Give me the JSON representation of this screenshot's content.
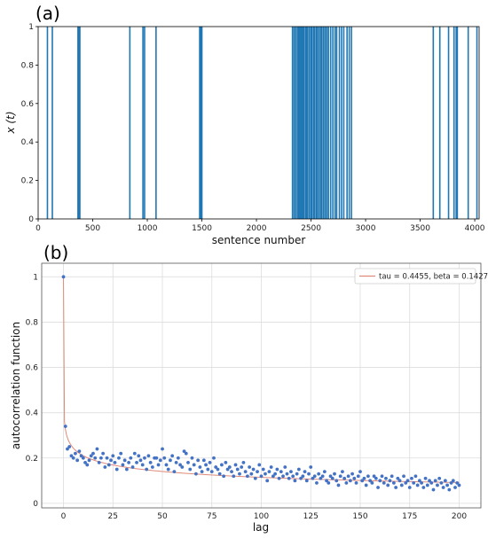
{
  "chart_data": [
    {
      "panel_label": "(a)",
      "type": "bar",
      "xlabel": "sentence number",
      "ylabel": "x (t)",
      "xlim": [
        0,
        4040
      ],
      "ylim": [
        0,
        1
      ],
      "x_ticks": [
        0,
        500,
        1000,
        1500,
        2000,
        2500,
        3000,
        3500,
        4000
      ],
      "y_ticks": [
        0.0,
        0.2,
        0.4,
        0.6,
        0.8,
        1.0
      ],
      "grid": false,
      "color": "#1f77b4",
      "spikes": [
        {
          "x": 85,
          "value": 1
        },
        {
          "x": 130,
          "value": 1
        },
        {
          "x": 365,
          "value": 1
        },
        {
          "x": 375,
          "value": 1
        },
        {
          "x": 382,
          "value": 1
        },
        {
          "x": 840,
          "value": 1
        },
        {
          "x": 960,
          "value": 1
        },
        {
          "x": 975,
          "value": 1
        },
        {
          "x": 1080,
          "value": 1
        },
        {
          "x": 1480,
          "value": 1
        },
        {
          "x": 1490,
          "value": 1
        },
        {
          "x": 1500,
          "value": 1
        },
        {
          "x": 2330,
          "value": 1
        },
        {
          "x": 2345,
          "value": 1
        },
        {
          "x": 2360,
          "value": 1
        },
        {
          "x": 2375,
          "value": 1
        },
        {
          "x": 2385,
          "value": 1
        },
        {
          "x": 2395,
          "value": 1
        },
        {
          "x": 2405,
          "value": 1
        },
        {
          "x": 2415,
          "value": 1
        },
        {
          "x": 2425,
          "value": 1
        },
        {
          "x": 2435,
          "value": 1
        },
        {
          "x": 2450,
          "value": 1
        },
        {
          "x": 2460,
          "value": 1
        },
        {
          "x": 2470,
          "value": 1
        },
        {
          "x": 2485,
          "value": 1
        },
        {
          "x": 2500,
          "value": 1
        },
        {
          "x": 2510,
          "value": 1
        },
        {
          "x": 2525,
          "value": 1
        },
        {
          "x": 2535,
          "value": 1
        },
        {
          "x": 2550,
          "value": 1
        },
        {
          "x": 2560,
          "value": 1
        },
        {
          "x": 2575,
          "value": 1
        },
        {
          "x": 2590,
          "value": 1
        },
        {
          "x": 2600,
          "value": 1
        },
        {
          "x": 2615,
          "value": 1
        },
        {
          "x": 2630,
          "value": 1
        },
        {
          "x": 2645,
          "value": 1
        },
        {
          "x": 2660,
          "value": 1
        },
        {
          "x": 2680,
          "value": 1
        },
        {
          "x": 2700,
          "value": 1
        },
        {
          "x": 2720,
          "value": 1
        },
        {
          "x": 2735,
          "value": 1
        },
        {
          "x": 2760,
          "value": 1
        },
        {
          "x": 2780,
          "value": 1
        },
        {
          "x": 2800,
          "value": 1
        },
        {
          "x": 2830,
          "value": 1
        },
        {
          "x": 2850,
          "value": 1
        },
        {
          "x": 2870,
          "value": 1
        },
        {
          "x": 3620,
          "value": 1
        },
        {
          "x": 3680,
          "value": 1
        },
        {
          "x": 3760,
          "value": 1
        },
        {
          "x": 3810,
          "value": 1
        },
        {
          "x": 3830,
          "value": 1
        },
        {
          "x": 3840,
          "value": 1
        },
        {
          "x": 3940,
          "value": 1
        },
        {
          "x": 4020,
          "value": 1
        }
      ]
    },
    {
      "panel_label": "(b)",
      "type": "scatter",
      "xlabel": "lag",
      "ylabel": "autocorrelation function",
      "xlim": [
        -11,
        211
      ],
      "ylim": [
        -0.02,
        1.06
      ],
      "x_ticks": [
        0,
        25,
        50,
        75,
        100,
        125,
        150,
        175,
        200
      ],
      "y_ticks": [
        0.0,
        0.2,
        0.4,
        0.6,
        0.8,
        1.0
      ],
      "grid": true,
      "legend_position": "top-right",
      "point_color": "#4472c4",
      "fit_color": "#e08a7a",
      "fit": {
        "label": "tau = 0.4455, beta = 0.1427",
        "tau": 0.4455,
        "beta": 0.1427
      },
      "lags": [
        0,
        1,
        2,
        3,
        4,
        5,
        6,
        7,
        8,
        9,
        10,
        11,
        12,
        13,
        14,
        15,
        16,
        17,
        18,
        19,
        20,
        21,
        22,
        23,
        24,
        25,
        26,
        27,
        28,
        29,
        30,
        31,
        32,
        33,
        34,
        35,
        36,
        37,
        38,
        39,
        40,
        41,
        42,
        43,
        44,
        45,
        46,
        47,
        48,
        49,
        50,
        51,
        52,
        53,
        54,
        55,
        56,
        57,
        58,
        59,
        60,
        61,
        62,
        63,
        64,
        65,
        66,
        67,
        68,
        69,
        70,
        71,
        72,
        73,
        74,
        75,
        76,
        77,
        78,
        79,
        80,
        81,
        82,
        83,
        84,
        85,
        86,
        87,
        88,
        89,
        90,
        91,
        92,
        93,
        94,
        95,
        96,
        97,
        98,
        99,
        100,
        101,
        102,
        103,
        104,
        105,
        106,
        107,
        108,
        109,
        110,
        111,
        112,
        113,
        114,
        115,
        116,
        117,
        118,
        119,
        120,
        121,
        122,
        123,
        124,
        125,
        126,
        127,
        128,
        129,
        130,
        131,
        132,
        133,
        134,
        135,
        136,
        137,
        138,
        139,
        140,
        141,
        142,
        143,
        144,
        145,
        146,
        147,
        148,
        149,
        150,
        151,
        152,
        153,
        154,
        155,
        156,
        157,
        158,
        159,
        160,
        161,
        162,
        163,
        164,
        165,
        166,
        167,
        168,
        169,
        170,
        171,
        172,
        173,
        174,
        175,
        176,
        177,
        178,
        179,
        180,
        181,
        182,
        183,
        184,
        185,
        186,
        187,
        188,
        189,
        190,
        191,
        192,
        193,
        194,
        195,
        196,
        197,
        198,
        199,
        200
      ],
      "values": [
        1.0,
        0.34,
        0.24,
        0.25,
        0.21,
        0.2,
        0.22,
        0.19,
        0.23,
        0.21,
        0.2,
        0.18,
        0.17,
        0.19,
        0.21,
        0.22,
        0.2,
        0.24,
        0.18,
        0.2,
        0.22,
        0.16,
        0.2,
        0.17,
        0.19,
        0.21,
        0.18,
        0.15,
        0.2,
        0.22,
        0.17,
        0.19,
        0.15,
        0.18,
        0.2,
        0.16,
        0.22,
        0.18,
        0.21,
        0.19,
        0.17,
        0.2,
        0.15,
        0.21,
        0.18,
        0.16,
        0.2,
        0.2,
        0.17,
        0.19,
        0.24,
        0.2,
        0.17,
        0.15,
        0.19,
        0.21,
        0.14,
        0.18,
        0.2,
        0.17,
        0.16,
        0.23,
        0.22,
        0.18,
        0.15,
        0.2,
        0.17,
        0.13,
        0.19,
        0.16,
        0.14,
        0.19,
        0.17,
        0.15,
        0.18,
        0.14,
        0.2,
        0.16,
        0.15,
        0.13,
        0.17,
        0.12,
        0.18,
        0.15,
        0.16,
        0.14,
        0.12,
        0.17,
        0.15,
        0.13,
        0.16,
        0.18,
        0.14,
        0.12,
        0.16,
        0.13,
        0.15,
        0.11,
        0.14,
        0.17,
        0.12,
        0.15,
        0.13,
        0.1,
        0.14,
        0.16,
        0.12,
        0.13,
        0.15,
        0.11,
        0.14,
        0.12,
        0.16,
        0.13,
        0.11,
        0.14,
        0.12,
        0.1,
        0.13,
        0.15,
        0.11,
        0.12,
        0.14,
        0.1,
        0.13,
        0.16,
        0.11,
        0.12,
        0.09,
        0.13,
        0.11,
        0.12,
        0.14,
        0.1,
        0.09,
        0.12,
        0.11,
        0.13,
        0.1,
        0.08,
        0.12,
        0.14,
        0.11,
        0.09,
        0.12,
        0.1,
        0.13,
        0.11,
        0.09,
        0.12,
        0.14,
        0.1,
        0.11,
        0.08,
        0.12,
        0.1,
        0.09,
        0.12,
        0.11,
        0.07,
        0.1,
        0.12,
        0.09,
        0.11,
        0.08,
        0.1,
        0.12,
        0.09,
        0.07,
        0.11,
        0.1,
        0.08,
        0.12,
        0.09,
        0.1,
        0.07,
        0.11,
        0.09,
        0.12,
        0.08,
        0.1,
        0.09,
        0.07,
        0.11,
        0.08,
        0.1,
        0.09,
        0.06,
        0.1,
        0.08,
        0.11,
        0.09,
        0.07,
        0.1,
        0.08,
        0.06,
        0.09,
        0.1,
        0.07,
        0.09,
        0.08,
        0.07,
        0.05
      ]
    }
  ]
}
